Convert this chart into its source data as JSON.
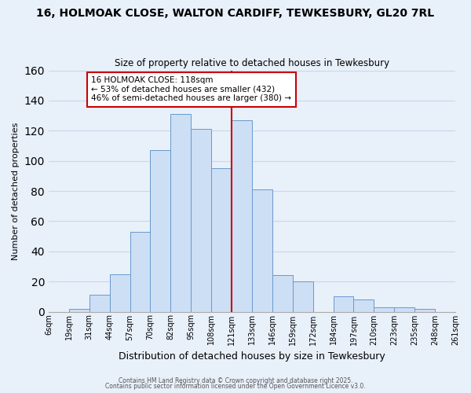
{
  "title": "16, HOLMOAK CLOSE, WALTON CARDIFF, TEWKESBURY, GL20 7RL",
  "subtitle": "Size of property relative to detached houses in Tewkesbury",
  "xlabel": "Distribution of detached houses by size in Tewkesbury",
  "ylabel": "Number of detached properties",
  "bar_labels": [
    "6sqm",
    "19sqm",
    "31sqm",
    "44sqm",
    "57sqm",
    "70sqm",
    "82sqm",
    "95sqm",
    "108sqm",
    "121sqm",
    "133sqm",
    "146sqm",
    "159sqm",
    "172sqm",
    "184sqm",
    "197sqm",
    "210sqm",
    "223sqm",
    "235sqm",
    "248sqm",
    "261sqm"
  ],
  "bar_values": [
    0,
    2,
    11,
    25,
    53,
    107,
    131,
    121,
    95,
    127,
    81,
    24,
    20,
    0,
    10,
    8,
    3,
    3,
    2,
    0
  ],
  "bar_color": "#cddff5",
  "bar_edge_color": "#6899cc",
  "grid_color": "#c8d8e8",
  "vline_x": 9,
  "vline_color": "#cc0000",
  "annotation_text": "16 HOLMOAK CLOSE: 118sqm\n← 53% of detached houses are smaller (432)\n46% of semi-detached houses are larger (380) →",
  "annotation_box_color": "#ffffff",
  "annotation_box_edge": "#cc0000",
  "ylim": [
    0,
    160
  ],
  "yticks": [
    0,
    20,
    40,
    60,
    80,
    100,
    120,
    140,
    160
  ],
  "footer1": "Contains HM Land Registry data © Crown copyright and database right 2025.",
  "footer2": "Contains public sector information licensed under the Open Government Licence v3.0.",
  "bg_color": "#e8f0fa"
}
